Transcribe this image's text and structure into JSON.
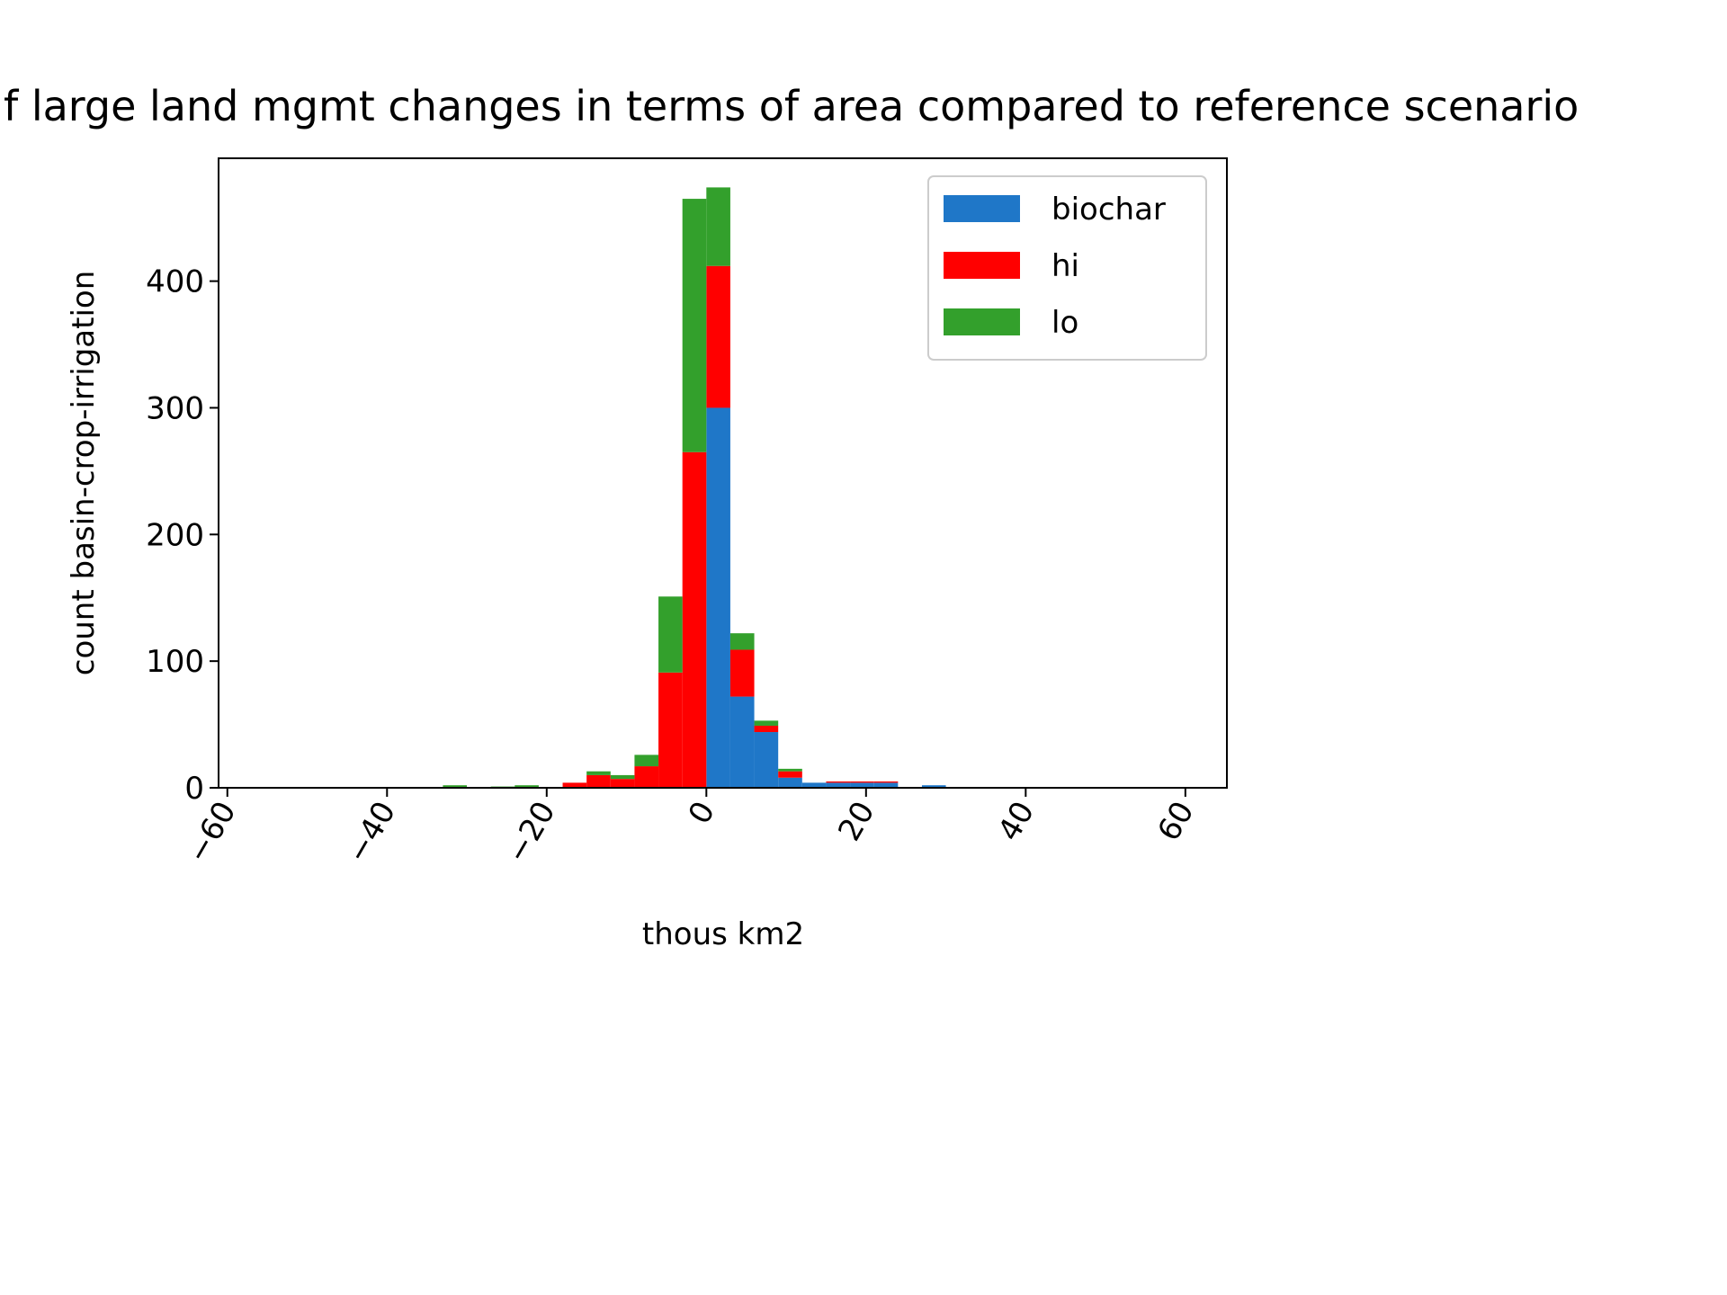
{
  "chart_data": {
    "type": "stacked_histogram",
    "title": "f large land mgmt changes in terms of area compared to reference scenario",
    "xlabel": "thous km2",
    "ylabel": "count basin-crop-irrigation",
    "bins": [
      -33,
      -30,
      -27,
      -24,
      -21,
      -18,
      -15,
      -12,
      -9,
      -6,
      -3,
      0,
      3,
      6,
      9,
      12,
      15,
      18,
      21,
      24,
      27,
      30
    ],
    "series": [
      {
        "name": "biochar",
        "color": "#1f77c8",
        "values": [
          0,
          0,
          0,
          0,
          0,
          0,
          0,
          0,
          0,
          0,
          0,
          300,
          72,
          44,
          8,
          4,
          4,
          4,
          4,
          0,
          2
        ]
      },
      {
        "name": "hi",
        "color": "#ff0000",
        "values": [
          0,
          0,
          0,
          0,
          0,
          4,
          10,
          7,
          17,
          91,
          265,
          112,
          37,
          5,
          5,
          0,
          1,
          1,
          1,
          0,
          0
        ]
      },
      {
        "name": "lo",
        "color": "#33a02c",
        "values": [
          2,
          0,
          1,
          2,
          0,
          0,
          3,
          3,
          9,
          60,
          200,
          62,
          13,
          4,
          2,
          0,
          0,
          0,
          0,
          0,
          0
        ]
      }
    ],
    "xlim": [
      -61.1,
      65.2
    ],
    "ylim": [
      0,
      497
    ],
    "xticks": [
      {
        "value": -60,
        "label": "−60"
      },
      {
        "value": -40,
        "label": "−40"
      },
      {
        "value": -20,
        "label": "−20"
      },
      0,
      20,
      40,
      60
    ],
    "yticks": [
      0,
      100,
      200,
      300,
      400
    ],
    "legend": "upper right"
  }
}
